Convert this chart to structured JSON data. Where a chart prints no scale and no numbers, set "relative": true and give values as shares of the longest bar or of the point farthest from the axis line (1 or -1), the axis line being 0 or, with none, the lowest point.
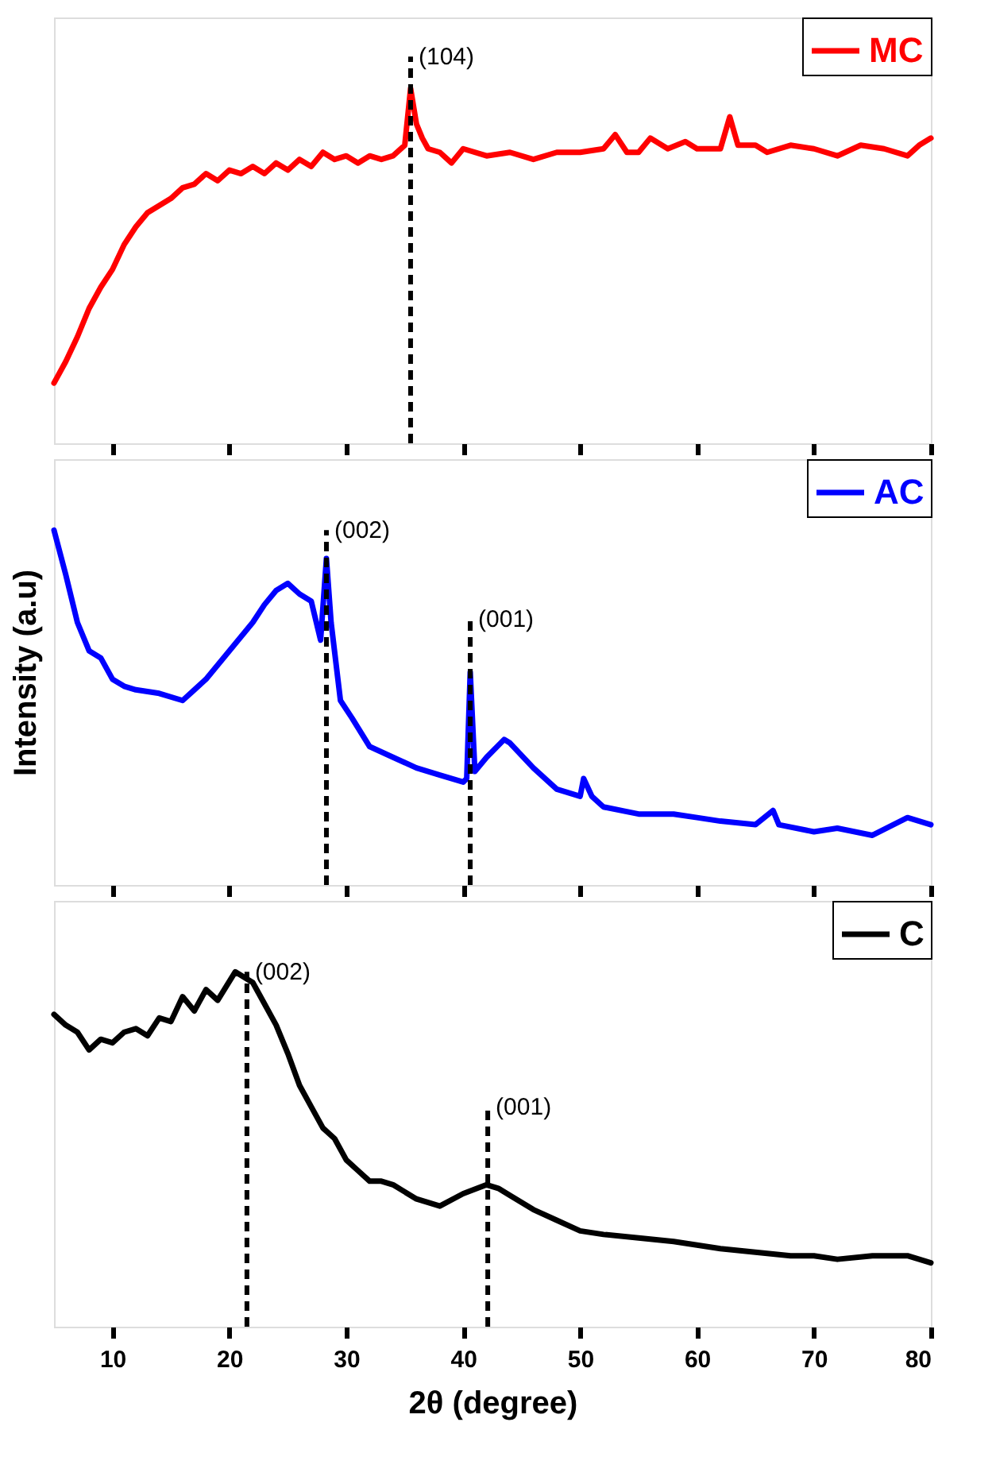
{
  "chart_data": [
    {
      "type": "line",
      "relative": true,
      "xlim": [
        5,
        80
      ],
      "xticks": [
        10,
        20,
        30,
        40,
        50,
        60,
        70,
        80
      ],
      "tick_labels": false,
      "grid": false,
      "legend": "top right",
      "marker": "none",
      "line_style": "solid",
      "series": [
        {
          "name": "MC",
          "color": "#ff0000",
          "x": [
            5,
            6,
            7,
            8,
            9,
            10,
            11,
            12,
            13,
            14,
            15,
            16,
            17,
            18,
            19,
            20,
            21,
            22,
            23,
            24,
            25,
            26,
            27,
            28,
            29,
            30,
            31,
            32,
            33,
            34,
            35,
            35.5,
            36,
            36.5,
            37,
            38,
            39,
            40,
            42,
            44,
            46,
            48,
            50,
            52,
            53,
            54,
            55,
            56,
            57.5,
            59,
            60,
            62,
            62.8,
            63.5,
            65,
            66,
            68,
            70,
            72,
            74,
            76,
            78,
            79,
            80
          ],
          "values": [
            0.17,
            0.23,
            0.3,
            0.38,
            0.44,
            0.49,
            0.56,
            0.61,
            0.65,
            0.67,
            0.69,
            0.72,
            0.73,
            0.76,
            0.74,
            0.77,
            0.76,
            0.78,
            0.76,
            0.79,
            0.77,
            0.8,
            0.78,
            0.82,
            0.8,
            0.81,
            0.79,
            0.81,
            0.8,
            0.81,
            0.84,
            1.0,
            0.9,
            0.86,
            0.83,
            0.82,
            0.79,
            0.83,
            0.81,
            0.82,
            0.8,
            0.82,
            0.82,
            0.83,
            0.87,
            0.82,
            0.82,
            0.86,
            0.83,
            0.85,
            0.83,
            0.83,
            0.92,
            0.84,
            0.84,
            0.82,
            0.84,
            0.83,
            0.81,
            0.84,
            0.83,
            0.81,
            0.84,
            0.86
          ]
        }
      ],
      "ref_lines": [
        {
          "axis": "x",
          "value": 35.5,
          "color": "#000000",
          "line_style": "dashed"
        }
      ],
      "annotations": [
        {
          "text": "(104)",
          "x": 35.5,
          "y": 1.09
        }
      ]
    },
    {
      "type": "line",
      "relative": true,
      "xlim": [
        5,
        80
      ],
      "xticks": [
        10,
        20,
        30,
        40,
        50,
        60,
        70,
        80
      ],
      "tick_labels": false,
      "grid": false,
      "legend": "top right",
      "marker": "none",
      "line_style": "solid",
      "ylabel": "Intensity (a.u)",
      "series": [
        {
          "name": "AC",
          "color": "#0000ff",
          "x": [
            5,
            6,
            7,
            8,
            9,
            10,
            11,
            12,
            14,
            16,
            17,
            18,
            20,
            22,
            23,
            24,
            25,
            26,
            27,
            27.8,
            28.3,
            28.7,
            29.5,
            30.5,
            32,
            34,
            36,
            38,
            40,
            40.3,
            40.6,
            41,
            42,
            43.5,
            44,
            46,
            48,
            50,
            50.3,
            51,
            52,
            55,
            58,
            60,
            62,
            65,
            66.5,
            67,
            70,
            72,
            75,
            78,
            80
          ],
          "values": [
            1.0,
            0.875,
            0.74,
            0.66,
            0.64,
            0.58,
            0.56,
            0.55,
            0.54,
            0.52,
            0.55,
            0.58,
            0.66,
            0.74,
            0.79,
            0.83,
            0.85,
            0.82,
            0.8,
            0.69,
            0.92,
            0.74,
            0.52,
            0.47,
            0.39,
            0.36,
            0.33,
            0.31,
            0.29,
            0.3,
            0.6,
            0.32,
            0.36,
            0.41,
            0.4,
            0.33,
            0.27,
            0.25,
            0.3,
            0.25,
            0.22,
            0.2,
            0.2,
            0.19,
            0.18,
            0.17,
            0.21,
            0.17,
            0.15,
            0.16,
            0.14,
            0.19,
            0.17
          ]
        }
      ],
      "ref_lines": [
        {
          "axis": "x",
          "value": 28.3,
          "color": "#000000",
          "line_style": "dashed"
        },
        {
          "axis": "x",
          "value": 40.6,
          "color": "#000000",
          "line_style": "dashed"
        }
      ],
      "annotations": [
        {
          "text": "(002)",
          "x": 28.3,
          "y": 1.0
        },
        {
          "text": "(001)",
          "x": 40.6,
          "y": 0.75
        }
      ]
    },
    {
      "type": "line",
      "relative": true,
      "xlim": [
        5,
        80
      ],
      "xticks": [
        10,
        20,
        30,
        40,
        50,
        60,
        70,
        80
      ],
      "tick_labels": "x",
      "grid": false,
      "legend": "top right",
      "marker": "none",
      "line_style": "solid",
      "xlabel": "2θ (degree)",
      "series": [
        {
          "name": "C",
          "color": "#000000",
          "x": [
            5,
            6,
            7,
            8,
            9,
            10,
            11,
            12,
            13,
            14,
            15,
            16,
            17,
            18,
            19,
            20.5,
            22,
            23,
            24,
            25,
            26,
            27,
            28,
            29,
            30,
            31,
            32,
            33,
            34,
            36,
            38,
            40,
            42,
            43,
            44,
            46,
            48,
            50,
            52,
            55,
            58,
            60,
            62,
            65,
            68,
            70,
            72,
            75,
            78,
            80
          ],
          "values": [
            0.88,
            0.85,
            0.83,
            0.78,
            0.81,
            0.8,
            0.83,
            0.84,
            0.82,
            0.87,
            0.86,
            0.93,
            0.89,
            0.95,
            0.92,
            1.0,
            0.97,
            0.91,
            0.85,
            0.77,
            0.68,
            0.62,
            0.56,
            0.53,
            0.47,
            0.44,
            0.41,
            0.41,
            0.4,
            0.36,
            0.34,
            0.375,
            0.4,
            0.39,
            0.37,
            0.33,
            0.3,
            0.27,
            0.26,
            0.25,
            0.24,
            0.23,
            0.22,
            0.21,
            0.2,
            0.2,
            0.19,
            0.2,
            0.2,
            0.18
          ]
        }
      ],
      "ref_lines": [
        {
          "axis": "x",
          "value": 21.5,
          "color": "#000000",
          "line_style": "dashed"
        },
        {
          "axis": "x",
          "value": 42.1,
          "color": "#000000",
          "line_style": "dashed"
        }
      ],
      "annotations": [
        {
          "text": "(002)",
          "x": 21.5,
          "y": 1.0
        },
        {
          "text": "(001)",
          "x": 42.1,
          "y": 0.62
        }
      ]
    }
  ]
}
